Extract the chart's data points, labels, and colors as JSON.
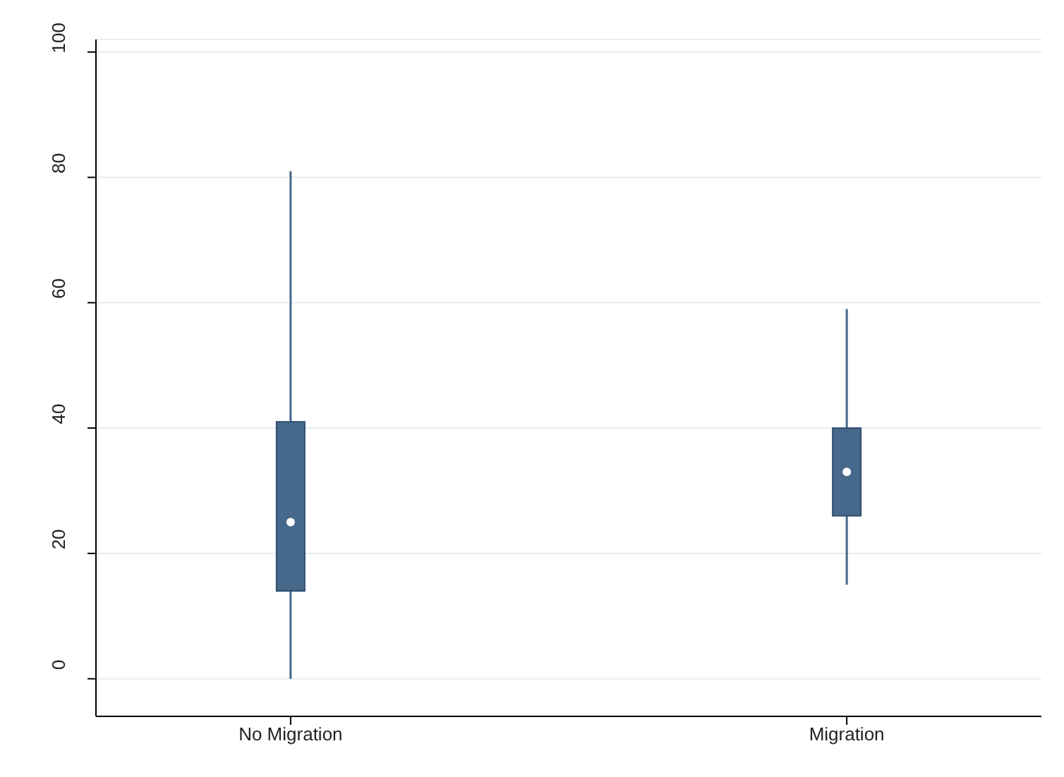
{
  "chart_data": {
    "type": "box",
    "categories": [
      "No Migration",
      "Migration"
    ],
    "boxes": [
      {
        "low": 0,
        "q1": 14,
        "median": 25,
        "q3": 41,
        "high": 81
      },
      {
        "low": 15,
        "q1": 26,
        "median": 33,
        "q3": 40,
        "high": 59
      }
    ],
    "color": "#46688a",
    "ylim": [
      -6,
      102
    ],
    "yticks": [
      0,
      20,
      40,
      60,
      80,
      100
    ],
    "grid": "y"
  }
}
